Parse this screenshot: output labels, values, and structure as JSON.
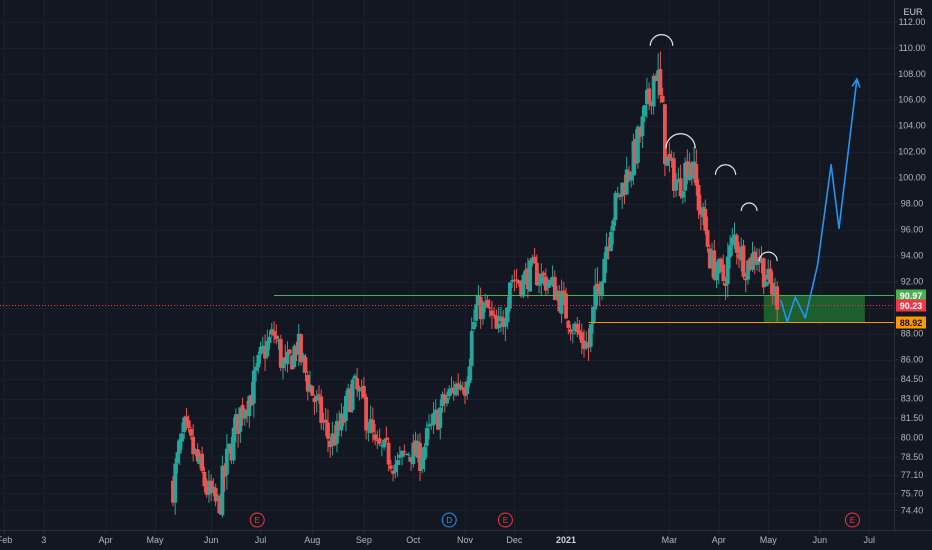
{
  "chart_data": {
    "type": "candlestick",
    "currency": "EUR",
    "ylim": [
      73.5,
      112.6
    ],
    "y_ticks": [
      "112.00",
      "110.00",
      "108.00",
      "106.00",
      "104.00",
      "102.00",
      "100.00",
      "98.00",
      "96.00",
      "94.00",
      "92.00",
      "90.00",
      "88.00",
      "86.00",
      "84.50",
      "83.00",
      "81.50",
      "80.00",
      "78.50",
      "77.10",
      "75.70",
      "74.40"
    ],
    "x_ticks": [
      {
        "label": "Feb",
        "t": -1
      },
      {
        "label": "3",
        "t": 2.5
      },
      {
        "label": "Apr",
        "t": 8
      },
      {
        "label": "May",
        "t": 12.4
      },
      {
        "label": "Jun",
        "t": 17.4
      },
      {
        "label": "Jul",
        "t": 21.8
      },
      {
        "label": "Aug",
        "t": 26.4
      },
      {
        "label": "Sep",
        "t": 31
      },
      {
        "label": "Oct",
        "t": 35.4
      },
      {
        "label": "Nov",
        "t": 40
      },
      {
        "label": "Dec",
        "t": 44.4
      },
      {
        "label": "2021",
        "t": 49,
        "bold": true
      },
      {
        "label": "Mar",
        "t": 58.2
      },
      {
        "label": "Apr",
        "t": 62.6
      },
      {
        "label": "May",
        "t": 67
      },
      {
        "label": "Jun",
        "t": 71.6
      },
      {
        "label": "Jul",
        "t": 76
      }
    ],
    "x_range": [
      -1.4,
      78.2
    ],
    "levels": [
      {
        "price": 90.97,
        "label": "90.97",
        "color": "#4caf50",
        "style": "solid",
        "from_t": 23
      },
      {
        "price": 90.23,
        "label": "90.23",
        "color": "#f23645",
        "style": "dotted",
        "from_t": -1.4
      },
      {
        "price": 88.92,
        "label": "88.92",
        "color": "#ff9800",
        "style": "solid",
        "from_t": 51
      }
    ],
    "zone": {
      "from_t": 66.6,
      "to_t": 75.6,
      "top": 90.97,
      "bottom": 88.9,
      "color": "#1e6b2e"
    },
    "events": [
      {
        "t": 21.5,
        "label": "E",
        "color": "#f23645"
      },
      {
        "t": 38.6,
        "label": "D",
        "color": "#2196f3"
      },
      {
        "t": 43.6,
        "label": "E",
        "color": "#f23645"
      },
      {
        "t": 74.5,
        "label": "E",
        "color": "#f23645"
      }
    ],
    "bull_color": "#26a69a",
    "bear_color": "#ef5350",
    "series_points": [
      [
        14,
        76.5
      ],
      [
        15,
        80.5
      ],
      [
        16,
        78.5
      ],
      [
        17,
        76
      ],
      [
        18,
        74.6
      ],
      [
        19,
        78.8
      ],
      [
        20,
        82
      ],
      [
        21,
        83.5
      ],
      [
        22,
        86.5
      ],
      [
        23,
        88
      ],
      [
        24,
        85
      ],
      [
        25,
        87.2
      ],
      [
        26,
        84.4
      ],
      [
        27,
        82
      ],
      [
        28,
        79.6
      ],
      [
        29,
        80.8
      ],
      [
        30,
        84
      ],
      [
        31,
        82.5
      ],
      [
        32,
        79.2
      ],
      [
        33,
        78.8
      ],
      [
        34,
        77.8
      ],
      [
        35,
        79
      ],
      [
        36,
        78.6
      ],
      [
        37,
        80.6
      ],
      [
        38,
        82.5
      ],
      [
        39,
        83.8
      ],
      [
        40,
        84.6
      ],
      [
        41,
        90
      ],
      [
        42,
        89.8
      ],
      [
        43,
        87.6
      ],
      [
        44,
        92.3
      ],
      [
        45,
        92
      ],
      [
        46,
        92.8
      ],
      [
        47,
        92.2
      ],
      [
        48,
        91.5
      ],
      [
        49,
        89.7
      ],
      [
        50,
        88
      ],
      [
        51,
        87
      ],
      [
        52,
        92.4
      ],
      [
        53,
        96.8
      ],
      [
        54,
        99.3
      ],
      [
        55,
        101.5
      ],
      [
        56,
        104.5
      ],
      [
        57,
        108.7
      ],
      [
        58,
        101.2
      ],
      [
        59,
        99.3
      ],
      [
        60,
        101.6
      ],
      [
        61,
        97.4
      ],
      [
        62,
        93.4
      ],
      [
        63,
        92.2
      ],
      [
        64,
        95.4
      ],
      [
        65,
        93.2
      ],
      [
        66,
        94.3
      ],
      [
        67,
        91.9
      ],
      [
        68,
        90.5
      ]
    ],
    "annotations": {
      "arcs": [
        {
          "t": 57.5,
          "price": 110.8,
          "w": 2.0
        },
        {
          "t": 59.2,
          "price": 103.1,
          "w": 2.6
        },
        {
          "t": 63.2,
          "price": 100.8,
          "w": 1.8
        },
        {
          "t": 65.3,
          "price": 97.9,
          "w": 1.4
        },
        {
          "t": 67.0,
          "price": 94.1,
          "w": 1.6
        }
      ],
      "projection": {
        "color": "#2196f3",
        "points": [
          [
            68.1,
            90.6
          ],
          [
            68.7,
            88.9
          ],
          [
            69.4,
            90.8
          ],
          [
            70.3,
            89.2
          ],
          [
            71.4,
            93.3
          ],
          [
            72.6,
            101.0
          ],
          [
            73.3,
            96.1
          ],
          [
            74.9,
            107.6
          ]
        ]
      }
    }
  }
}
